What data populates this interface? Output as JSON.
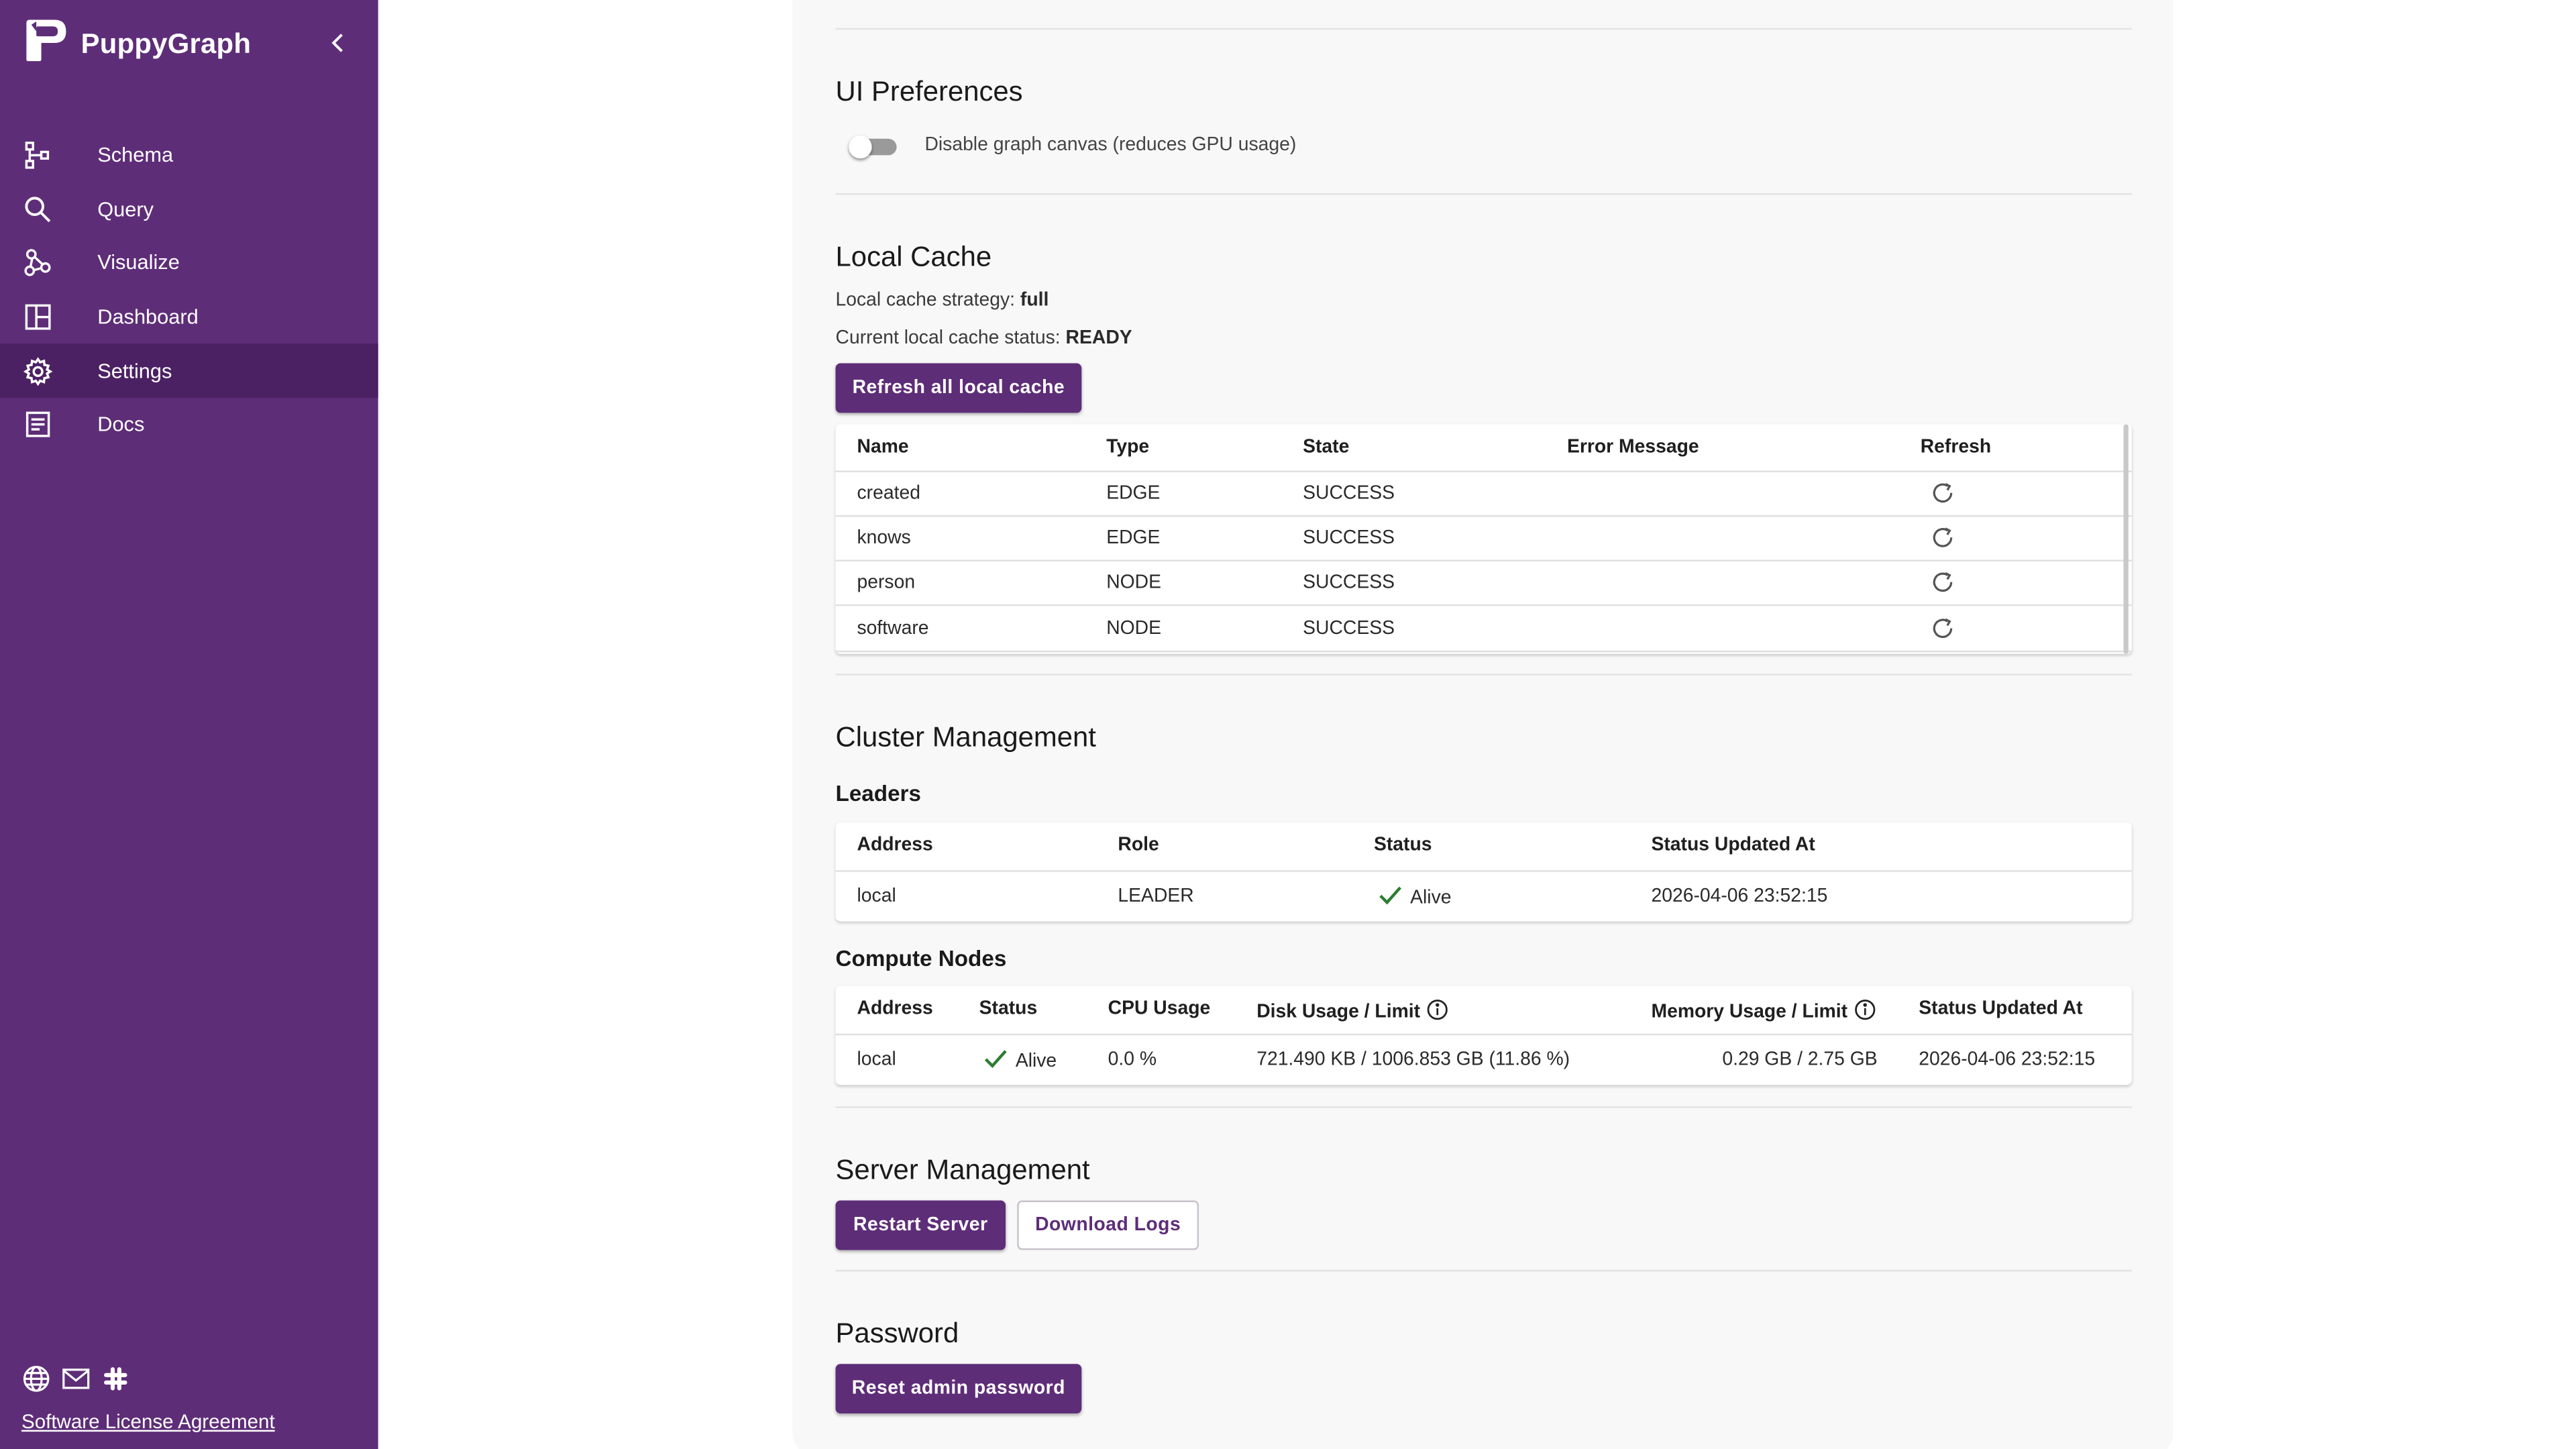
{
  "app": {
    "title": "PuppyGraph"
  },
  "sidebar": {
    "items": [
      {
        "label": "Schema",
        "icon": "schema-icon"
      },
      {
        "label": "Query",
        "icon": "search-icon"
      },
      {
        "label": "Visualize",
        "icon": "visualize-icon"
      },
      {
        "label": "Dashboard",
        "icon": "dashboard-icon"
      },
      {
        "label": "Settings",
        "icon": "gear-icon",
        "active": true
      },
      {
        "label": "Docs",
        "icon": "docs-icon"
      }
    ],
    "footer": {
      "license_link": "Software License Agreement",
      "icons": [
        "globe-icon",
        "mail-icon",
        "slack-icon"
      ]
    }
  },
  "ui_prefs": {
    "title": "UI Preferences",
    "toggle_label": "Disable graph canvas (reduces GPU usage)",
    "toggle_on": false
  },
  "local_cache": {
    "title": "Local Cache",
    "strategy_label": "Local cache strategy:",
    "strategy_value": "full",
    "status_label": "Current local cache status:",
    "status_value": "READY",
    "refresh_all_label": "Refresh all local cache",
    "columns": [
      "Name",
      "Type",
      "State",
      "Error Message",
      "Refresh"
    ],
    "rows": [
      {
        "name": "created",
        "type": "EDGE",
        "state": "SUCCESS",
        "error": ""
      },
      {
        "name": "knows",
        "type": "EDGE",
        "state": "SUCCESS",
        "error": ""
      },
      {
        "name": "person",
        "type": "NODE",
        "state": "SUCCESS",
        "error": ""
      },
      {
        "name": "software",
        "type": "NODE",
        "state": "SUCCESS",
        "error": ""
      }
    ]
  },
  "cluster": {
    "title": "Cluster Management",
    "leaders": {
      "title": "Leaders",
      "columns": [
        "Address",
        "Role",
        "Status",
        "Status Updated At"
      ],
      "rows": [
        {
          "address": "local",
          "role": "LEADER",
          "status": "Alive",
          "updated": "2026-04-06 23:52:15"
        }
      ]
    },
    "compute": {
      "title": "Compute Nodes",
      "columns": [
        "Address",
        "Status",
        "CPU Usage",
        "Disk Usage / Limit",
        "Memory Usage / Limit",
        "Status Updated At"
      ],
      "rows": [
        {
          "address": "local",
          "status": "Alive",
          "cpu": "0.0 %",
          "disk": "721.490 KB / 1006.853 GB (11.86 %)",
          "memory": "0.29 GB / 2.75 GB",
          "updated": "2026-04-06 23:52:15"
        }
      ]
    }
  },
  "server": {
    "title": "Server Management",
    "restart_label": "Restart Server",
    "logs_label": "Download Logs"
  },
  "password": {
    "title": "Password",
    "reset_label": "Reset admin password"
  },
  "colors": {
    "sidebar_bg": "#5e2d78",
    "sidebar_active": "#4c2163",
    "primary": "#5e2d78",
    "success": "#2e7d32"
  }
}
